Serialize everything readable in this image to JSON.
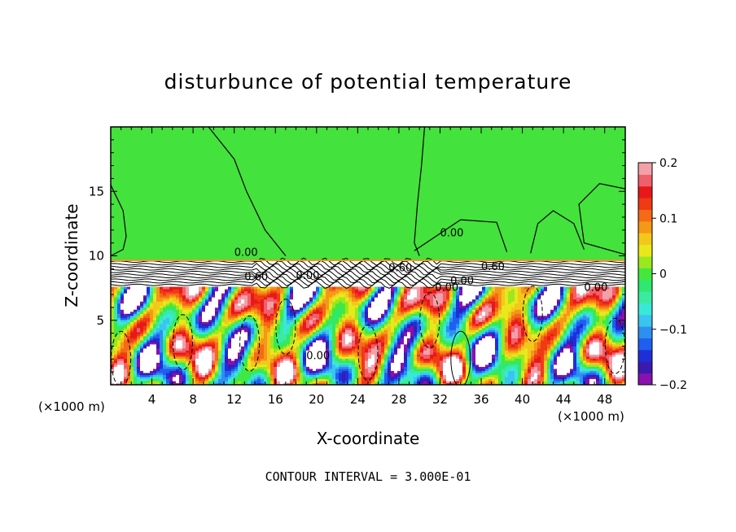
{
  "chart_data": {
    "type": "heatmap",
    "title": "disturbunce of potential temperature",
    "xlabel": "X-coordinate",
    "ylabel": "Z-coordinate",
    "x_unit": "(×1000 m)",
    "xlim": [
      0,
      50
    ],
    "ylim": [
      0,
      20
    ],
    "x_ticks": [
      4,
      8,
      12,
      16,
      20,
      24,
      28,
      32,
      36,
      40,
      44,
      48
    ],
    "y_ticks": [
      5,
      10,
      15
    ],
    "colorbar": {
      "range": [
        -0.2,
        0.2
      ],
      "ticks": [
        0.2,
        0.1,
        0,
        -0.1,
        -0.2
      ],
      "tick_labels": [
        "0.2",
        "0.1",
        "0",
        "−0.1",
        "−0.2"
      ],
      "colors": [
        "#8a10b0",
        "#3a1ab0",
        "#1f2fd8",
        "#1e5ff0",
        "#2e8ff0",
        "#3ac4f0",
        "#3ae8d8",
        "#3aeaa0",
        "#2ee870",
        "#44e83c",
        "#9be81e",
        "#e8e81c",
        "#f4c81a",
        "#f49818",
        "#f46a16",
        "#f03a14",
        "#e8181a",
        "#f0606a",
        "#f4a0a8"
      ]
    },
    "contour_labels": [
      "0.00",
      "0.00",
      "0.60",
      "0.60",
      "0.00",
      "0.00",
      "0.00",
      "0.60",
      "0.00",
      "0.00"
    ],
    "footer": "CONTOUR INTERVAL = 3.000E-01"
  }
}
